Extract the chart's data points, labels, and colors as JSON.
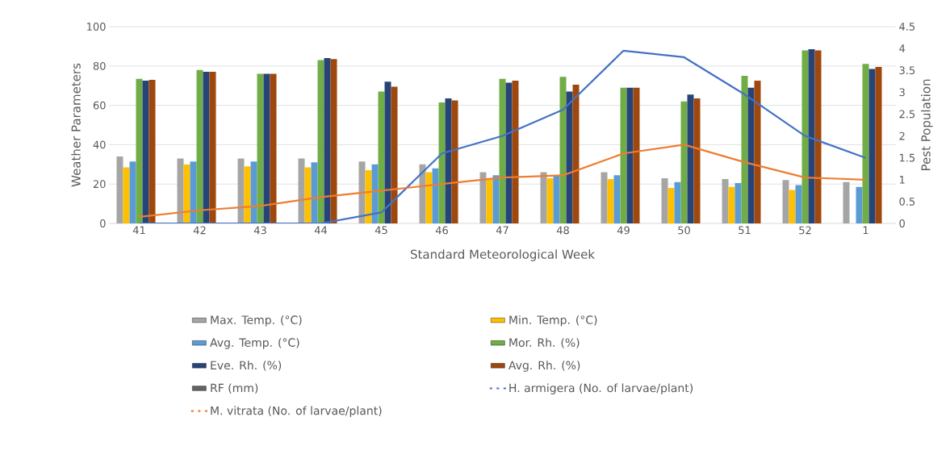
{
  "chart_data": {
    "type": "bar",
    "xlabel": "Standard Meteorological Week",
    "ylabel": "Weather Parameters",
    "y2label": "Pest Population",
    "categories": [
      "41",
      "42",
      "43",
      "44",
      "45",
      "46",
      "47",
      "48",
      "49",
      "50",
      "51",
      "52",
      "1"
    ],
    "series": [
      {
        "name": "Max. Temp. (°C)",
        "color": "#a5a5a5",
        "values": [
          34,
          33,
          33,
          33,
          31.5,
          30,
          26,
          26,
          26,
          23,
          22.5,
          22,
          21
        ]
      },
      {
        "name": "Min. Temp. (°C)",
        "color": "#ffc000",
        "values": [
          28.5,
          30,
          29,
          28.5,
          27,
          26,
          23,
          23,
          22.5,
          18,
          18.5,
          17,
          null
        ]
      },
      {
        "name": "Avg. Temp. (°C)",
        "color": "#5b9bd5",
        "values": [
          31.5,
          31.5,
          31.5,
          31,
          30,
          28,
          24.5,
          24.5,
          24.5,
          21,
          20.5,
          19.5,
          18.5
        ]
      },
      {
        "name": "Mor. Rh. (%)",
        "color": "#70ad47",
        "values": [
          73.5,
          78,
          76,
          83,
          67,
          61.5,
          73.5,
          74.5,
          69,
          62,
          75,
          88,
          81
        ]
      },
      {
        "name": "Eve. Rh. (%)",
        "color": "#264478",
        "values": [
          72.5,
          77,
          76,
          84,
          72,
          63.5,
          71.5,
          67,
          69,
          65.5,
          69,
          88.5,
          78.5
        ]
      },
      {
        "name": "Avg. Rh. (%)",
        "color": "#9e480e",
        "values": [
          73,
          77,
          76,
          83.5,
          69.5,
          62.5,
          72.5,
          70.5,
          69,
          63.5,
          72.5,
          88,
          79.5
        ]
      },
      {
        "name": "RF (mm)",
        "color": "#636363",
        "values": [
          0,
          0,
          0,
          0,
          0,
          0,
          0,
          0,
          0,
          0,
          0,
          0,
          0
        ]
      },
      {
        "name": "H. armigera (No. of larvae/plant)",
        "type": "line",
        "axis": "y2",
        "color": "#4472c4",
        "values": [
          0,
          0,
          0,
          0,
          0.25,
          1.6,
          2.0,
          2.6,
          3.95,
          3.8,
          2.95,
          2.0,
          1.5
        ]
      },
      {
        "name": "M. vitrata (No. of larvae/plant)",
        "type": "line",
        "axis": "y2",
        "color": "#ed7d31",
        "values": [
          0.15,
          0.3,
          0.4,
          0.6,
          0.75,
          0.9,
          1.05,
          1.1,
          1.6,
          1.8,
          1.4,
          1.05,
          1.0
        ]
      }
    ],
    "ylim": [
      0,
      100
    ],
    "yticks": [
      0,
      20,
      40,
      60,
      80,
      100
    ],
    "y2lim": [
      0,
      4.5
    ],
    "y2ticks": [
      0,
      0.5,
      1,
      1.5,
      2,
      2.5,
      3,
      3.5,
      4,
      4.5
    ],
    "grid": "y",
    "legend": "bottom"
  }
}
